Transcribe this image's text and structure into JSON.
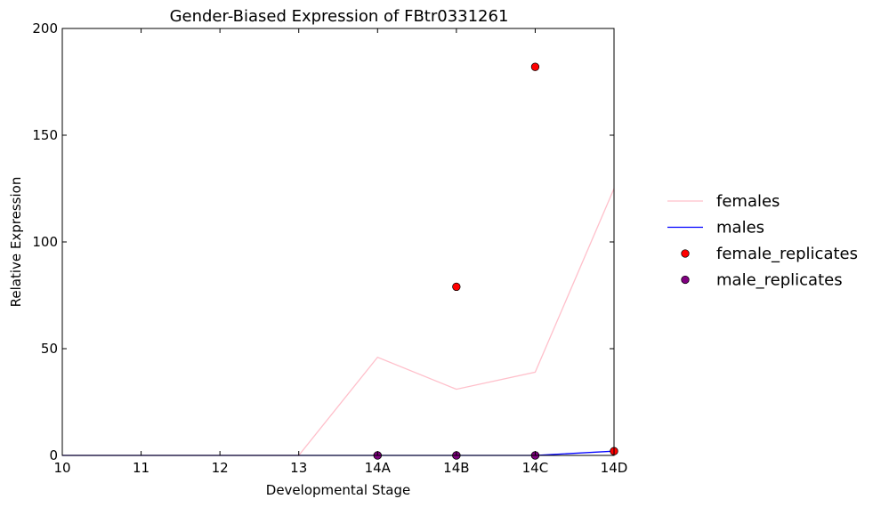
{
  "chart_data": {
    "type": "line",
    "title": "Gender-Biased Expression of FBtr0331261",
    "xlabel": "Developmental Stage",
    "ylabel": "Relative Expression",
    "categories": [
      "10",
      "11",
      "12",
      "13",
      "14A",
      "14B",
      "14C",
      "14D"
    ],
    "ylim": [
      0,
      200
    ],
    "yticks": [
      0,
      50,
      100,
      150,
      200
    ],
    "legend_position": "right",
    "series": [
      {
        "name": "females",
        "kind": "line",
        "color": "#ffc0cb",
        "values": [
          0,
          0,
          0,
          0,
          46,
          31,
          39,
          125
        ]
      },
      {
        "name": "males",
        "kind": "line",
        "color": "#0000ff",
        "values": [
          0,
          0,
          0,
          0,
          0,
          0,
          0,
          2
        ]
      },
      {
        "name": "female_replicates",
        "kind": "scatter",
        "color": "#ff0000",
        "points": [
          {
            "x": "14A",
            "y": 0
          },
          {
            "x": "14B",
            "y": 79
          },
          {
            "x": "14B",
            "y": 0
          },
          {
            "x": "14C",
            "y": 182
          },
          {
            "x": "14C",
            "y": 0
          },
          {
            "x": "14D",
            "y": 2
          }
        ]
      },
      {
        "name": "male_replicates",
        "kind": "scatter",
        "color": "#800080",
        "points": [
          {
            "x": "14A",
            "y": 0
          },
          {
            "x": "14B",
            "y": 0
          },
          {
            "x": "14C",
            "y": 0
          }
        ]
      }
    ]
  }
}
